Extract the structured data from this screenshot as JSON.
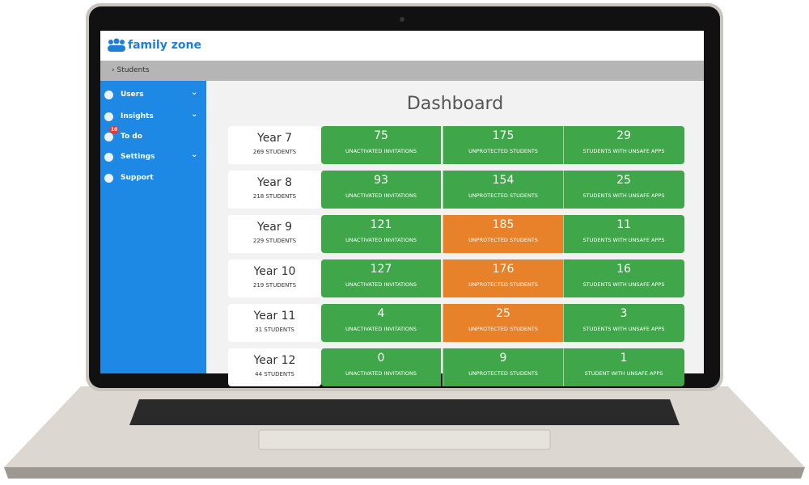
{
  "header": {
    "logo": "family zone"
  },
  "breadcrumb": "Students",
  "sidebar": {
    "items": [
      {
        "label": "Users",
        "submenu": true
      },
      {
        "label": "Insights",
        "submenu": true
      },
      {
        "label": "To do",
        "badge": 10,
        "submenu": false
      },
      {
        "label": "Settings",
        "submenu": true
      },
      {
        "label": "Support",
        "submenu": false
      }
    ]
  },
  "dashboard": {
    "title": "Dashboard",
    "rows": [
      {
        "year": "Year 7",
        "students": "269 STUDENTS",
        "cells": [
          {
            "value": 75,
            "label": "UNACTIVATED INVITATIONS",
            "color": "#3fa64a"
          },
          {
            "value": 175,
            "label": "UNPROTECTED STUDENTS",
            "color": "#3fa64a"
          },
          {
            "value": 29,
            "label": "STUDENTS WITH UNSAFE APPS",
            "color": "#3fa64a"
          }
        ]
      },
      {
        "year": "Year 8",
        "students": "218 STUDENTS",
        "cells": [
          {
            "value": 93,
            "label": "UNACTIVATED INVITATIONS",
            "color": "#3fa64a"
          },
          {
            "value": 154,
            "label": "UNPROTECTED STUDENTS",
            "color": "#3fa64a"
          },
          {
            "value": 25,
            "label": "STUDENTS WITH UNSAFE APPS",
            "color": "#3fa64a"
          }
        ]
      },
      {
        "year": "Year 9",
        "students": "229 STUDENTS",
        "cells": [
          {
            "value": 121,
            "label": "UNACTIVATED INVITATIONS",
            "color": "#3fa64a"
          },
          {
            "value": 185,
            "label": "UNPROTECTED STUDENTS",
            "color": "#e8822a"
          },
          {
            "value": 11,
            "label": "STUDENTS WITH UNSAFE APPS",
            "color": "#3fa64a"
          }
        ]
      },
      {
        "year": "Year 10",
        "students": "219 STUDENTS",
        "cells": [
          {
            "value": 127,
            "label": "UNACTIVATED INVITATIONS",
            "color": "#3fa64a"
          },
          {
            "value": 176,
            "label": "UNPROTECTED STUDENTS",
            "color": "#e8822a"
          },
          {
            "value": 16,
            "label": "STUDENTS WITH UNSAFE APPS",
            "color": "#3fa64a"
          }
        ]
      },
      {
        "year": "Year 11",
        "students": "31 STUDENTS",
        "cells": [
          {
            "value": 4,
            "label": "UNACTIVATED INVITATIONS",
            "color": "#3fa64a"
          },
          {
            "value": 25,
            "label": "UNPROTECTED STUDENTS",
            "color": "#e8822a"
          },
          {
            "value": 3,
            "label": "STUDENTS WITH UNSAFE APPS",
            "color": "#3fa64a"
          }
        ]
      },
      {
        "year": "Year 12",
        "students": "44 STUDENTS",
        "cells": [
          {
            "value": 0,
            "label": "UNACTIVATED INVITATIONS",
            "color": "#3fa64a"
          },
          {
            "value": 9,
            "label": "UNPROTECTED STUDENTS",
            "color": "#3fa64a"
          },
          {
            "value": 1,
            "label": "STUDENT WITH UNSAFE APPS",
            "color": "#3fa64a"
          }
        ]
      }
    ]
  }
}
